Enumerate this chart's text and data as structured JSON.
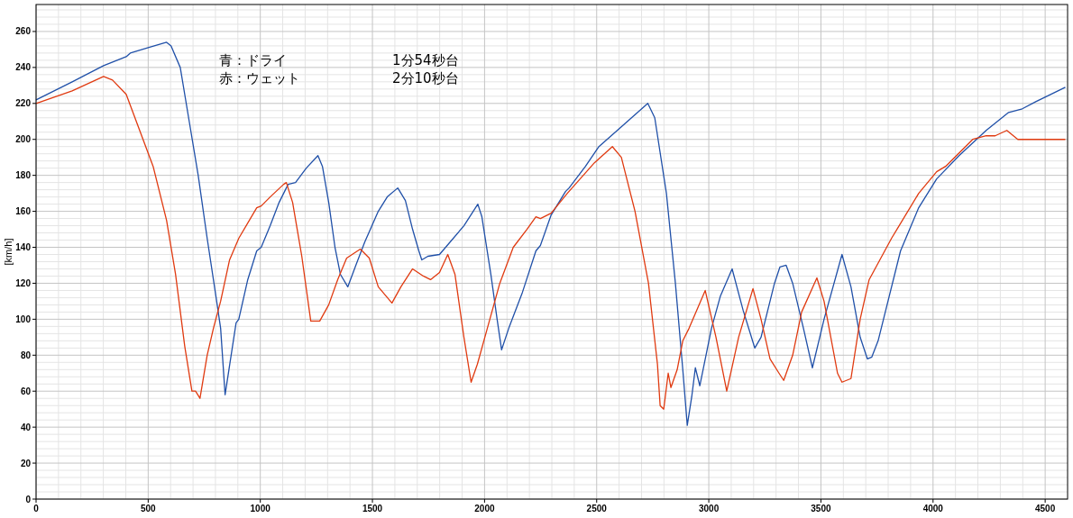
{
  "chart_data": {
    "type": "line",
    "ylabel": "[km/h]",
    "xlim": [
      0,
      4600
    ],
    "xticks": [
      0,
      500,
      1000,
      1500,
      2000,
      2500,
      3000,
      3500,
      4000,
      4500
    ],
    "ylim": [
      0,
      275
    ],
    "yticks": [
      0,
      20,
      40,
      60,
      80,
      100,
      120,
      140,
      160,
      180,
      200,
      220,
      240,
      260
    ],
    "grid": true,
    "marker": "none",
    "line_style": "solid",
    "annotations": [
      "青：ドライ",
      "赤：ウェット",
      "1分54秒台",
      "2分10秒台"
    ],
    "series": [
      {
        "color": "#2050a8",
        "x": [
          0,
          161,
          301,
          402,
          420,
          500,
          582,
          602,
          643,
          683,
          723,
          763,
          803,
          823,
          843,
          892,
          904,
          944,
          984,
          1004,
          1044,
          1084,
          1124,
          1157,
          1205,
          1257,
          1277,
          1305,
          1333,
          1357,
          1390,
          1426,
          1466,
          1526,
          1566,
          1613,
          1647,
          1679,
          1707,
          1720,
          1747,
          1799,
          1847,
          1908,
          1970,
          1988,
          2028,
          2056,
          2076,
          2108,
          2169,
          2229,
          2249,
          2297,
          2361,
          2377,
          2450,
          2510,
          2610,
          2728,
          2759,
          2811,
          2851,
          2884,
          2904,
          2924,
          2940,
          2960,
          3012,
          3052,
          3104,
          3153,
          3205,
          3233,
          3293,
          3317,
          3345,
          3374,
          3422,
          3462,
          3514,
          3594,
          3634,
          3675,
          3707,
          3727,
          3755,
          3795,
          3855,
          3936,
          4016,
          4116,
          4237,
          4337,
          4398,
          4458,
          4590
        ],
        "values": [
          222,
          232,
          241,
          246,
          248,
          251,
          254,
          252,
          240,
          210,
          180,
          145,
          112,
          95,
          58,
          98,
          100,
          122,
          138,
          140,
          152,
          165,
          175,
          176,
          184,
          191,
          185,
          165,
          140,
          125,
          118,
          130,
          143,
          160,
          168,
          173,
          166,
          150,
          138,
          133,
          135,
          136,
          143,
          152,
          164,
          157,
          125,
          100,
          83,
          95,
          115,
          138,
          141,
          158,
          171,
          173,
          185,
          196,
          207,
          220,
          212,
          170,
          120,
          72,
          41,
          57,
          73,
          63,
          95,
          113,
          128,
          105,
          84,
          90,
          120,
          129,
          130,
          120,
          95,
          73,
          100,
          136,
          118,
          90,
          78,
          79,
          88,
          108,
          138,
          162,
          178,
          191,
          205,
          215,
          217,
          221,
          229
        ]
      },
      {
        "color": "#e03a10",
        "x": [
          0,
          161,
          301,
          341,
          402,
          462,
          522,
          582,
          622,
          663,
          695,
          711,
          731,
          763,
          791,
          823,
          863,
          904,
          984,
          1004,
          1044,
          1104,
          1116,
          1144,
          1185,
          1225,
          1265,
          1305,
          1345,
          1385,
          1446,
          1486,
          1526,
          1587,
          1627,
          1679,
          1727,
          1759,
          1799,
          1836,
          1868,
          1908,
          1940,
          1968,
          2008,
          2068,
          2128,
          2189,
          2229,
          2249,
          2297,
          2369,
          2490,
          2570,
          2610,
          2671,
          2731,
          2771,
          2783,
          2799,
          2819,
          2831,
          2859,
          2884,
          2912,
          2984,
          3032,
          3080,
          3133,
          3197,
          3233,
          3273,
          3313,
          3334,
          3374,
          3414,
          3482,
          3514,
          3574,
          3594,
          3634,
          3675,
          3715,
          3815,
          3936,
          4016,
          4056,
          4177,
          4237,
          4277,
          4329,
          4378,
          4458,
          4590
        ],
        "values": [
          220,
          227,
          235,
          233,
          225,
          205,
          185,
          155,
          125,
          85,
          60,
          60,
          56,
          80,
          95,
          110,
          133,
          145,
          162,
          163,
          168,
          175,
          176,
          165,
          135,
          99,
          99,
          108,
          122,
          134,
          139,
          134,
          118,
          109,
          118,
          128,
          124,
          122,
          126,
          136,
          125,
          90,
          65,
          75,
          93,
          120,
          140,
          150,
          157,
          156,
          159,
          170,
          187,
          196,
          190,
          160,
          120,
          75,
          52,
          50,
          70,
          62,
          72,
          88,
          95,
          116,
          90,
          60,
          90,
          117,
          100,
          78,
          70,
          66,
          80,
          104,
          123,
          110,
          70,
          65,
          67,
          100,
          122,
          145,
          170,
          182,
          185,
          200,
          202,
          202,
          205,
          200,
          200,
          200
        ]
      }
    ]
  }
}
